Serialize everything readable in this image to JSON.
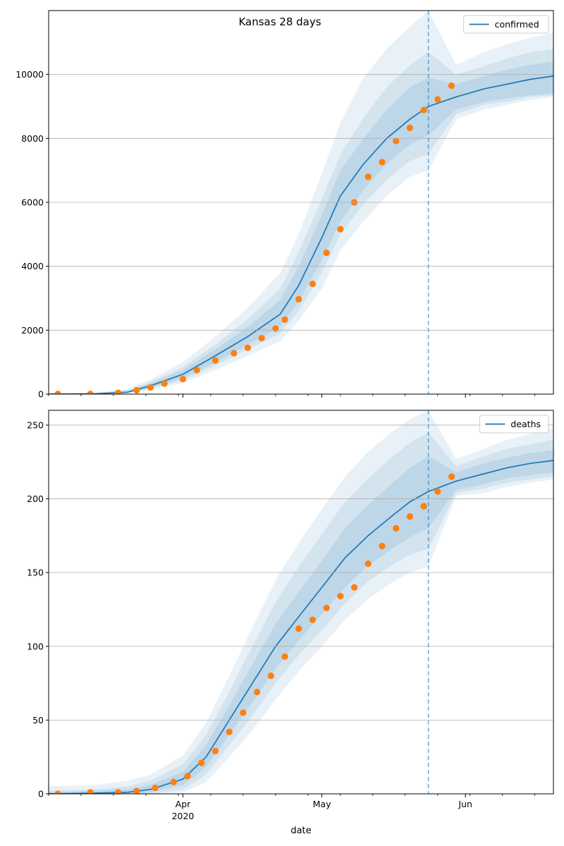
{
  "figure": {
    "title": "Kansas 28 days",
    "xlabel": "date"
  },
  "chart_data": [
    {
      "type": "line",
      "name": "confirmed-panel",
      "legend": {
        "entries": [
          "confirmed"
        ],
        "placement": "upper right"
      },
      "x_range": [
        "2020-03-03",
        "2020-06-20"
      ],
      "x_ticks": [
        {
          "date": "2020-04-01",
          "label": "Apr",
          "sublabel": "2020"
        },
        {
          "date": "2020-05-01",
          "label": "May",
          "sublabel": ""
        },
        {
          "date": "2020-06-01",
          "label": "Jun",
          "sublabel": ""
        }
      ],
      "ylim": [
        0,
        12000
      ],
      "y_ticks": [
        0,
        2000,
        4000,
        6000,
        8000,
        10000
      ],
      "grid": "horizontal",
      "forecast_start": "2020-05-24",
      "band_colors": "#1f77b4",
      "line_color": "#1f77b4",
      "marker_color": "#ff7f0e",
      "model": {
        "x": [
          "2020-03-03",
          "2020-03-13",
          "2020-03-20",
          "2020-03-25",
          "2020-04-01",
          "2020-04-08",
          "2020-04-15",
          "2020-04-22",
          "2020-04-26",
          "2020-05-01",
          "2020-05-05",
          "2020-05-10",
          "2020-05-15",
          "2020-05-20",
          "2020-05-24",
          "2020-05-30",
          "2020-06-05",
          "2020-06-10",
          "2020-06-15",
          "2020-06-20"
        ],
        "median": [
          0,
          10,
          60,
          260,
          620,
          1200,
          1800,
          2500,
          3400,
          4900,
          6200,
          7200,
          8000,
          8600,
          9000,
          9300,
          9550,
          9700,
          9850,
          9950
        ],
        "inner": [
          [
            0,
            0
          ],
          [
            5,
            20
          ],
          [
            40,
            90
          ],
          [
            200,
            330
          ],
          [
            500,
            750
          ],
          [
            1000,
            1400
          ],
          [
            1550,
            2100
          ],
          [
            2100,
            2950
          ],
          [
            2900,
            4000
          ],
          [
            4200,
            5600
          ],
          [
            5400,
            7000
          ],
          [
            6400,
            8000
          ],
          [
            7200,
            8900
          ],
          [
            7800,
            9600
          ],
          [
            8100,
            9900
          ],
          [
            8900,
            9700
          ],
          [
            9150,
            9950
          ],
          [
            9250,
            10150
          ],
          [
            9350,
            10300
          ],
          [
            9400,
            10400
          ]
        ],
        "middle": [
          [
            0,
            5
          ],
          [
            3,
            30
          ],
          [
            30,
            120
          ],
          [
            170,
            380
          ],
          [
            430,
            850
          ],
          [
            900,
            1550
          ],
          [
            1400,
            2350
          ],
          [
            1900,
            3300
          ],
          [
            2600,
            4450
          ],
          [
            3800,
            6100
          ],
          [
            5000,
            7500
          ],
          [
            5950,
            8650
          ],
          [
            6700,
            9600
          ],
          [
            7300,
            10300
          ],
          [
            7500,
            10700
          ],
          [
            8750,
            10000
          ],
          [
            9050,
            10250
          ],
          [
            9150,
            10500
          ],
          [
            9300,
            10700
          ],
          [
            9350,
            10800
          ]
        ],
        "outer": [
          [
            0,
            10
          ],
          [
            0,
            45
          ],
          [
            20,
            160
          ],
          [
            130,
            460
          ],
          [
            350,
            1000
          ],
          [
            750,
            1800
          ],
          [
            1200,
            2700
          ],
          [
            1650,
            3800
          ],
          [
            2300,
            5000
          ],
          [
            3300,
            6900
          ],
          [
            4500,
            8500
          ],
          [
            5400,
            9900
          ],
          [
            6200,
            10800
          ],
          [
            6800,
            11500
          ],
          [
            7000,
            12000
          ],
          [
            8600,
            10300
          ],
          [
            8900,
            10700
          ],
          [
            9050,
            10950
          ],
          [
            9200,
            11150
          ],
          [
            9300,
            11300
          ]
        ]
      },
      "observed": {
        "x": [
          "2020-03-05",
          "2020-03-12",
          "2020-03-18",
          "2020-03-22",
          "2020-03-25",
          "2020-03-28",
          "2020-04-01",
          "2020-04-04",
          "2020-04-08",
          "2020-04-12",
          "2020-04-15",
          "2020-04-18",
          "2020-04-21",
          "2020-04-23",
          "2020-04-26",
          "2020-04-29",
          "2020-05-02",
          "2020-05-05",
          "2020-05-08",
          "2020-05-11",
          "2020-05-14",
          "2020-05-17",
          "2020-05-20",
          "2020-05-23",
          "2020-05-26",
          "2020-05-29"
        ],
        "y": [
          5,
          5,
          40,
          120,
          210,
          330,
          470,
          750,
          1050,
          1280,
          1450,
          1750,
          2050,
          2330,
          2970,
          3450,
          4420,
          5160,
          6000,
          6800,
          7260,
          7920,
          8330,
          8890,
          9220,
          9650
        ]
      }
    },
    {
      "type": "line",
      "name": "deaths-panel",
      "legend": {
        "entries": [
          "deaths"
        ],
        "placement": "upper right"
      },
      "x_range": [
        "2020-03-03",
        "2020-06-20"
      ],
      "x_ticks": [
        {
          "date": "2020-04-01",
          "label": "Apr",
          "sublabel": "2020"
        },
        {
          "date": "2020-05-01",
          "label": "May",
          "sublabel": ""
        },
        {
          "date": "2020-06-01",
          "label": "Jun",
          "sublabel": ""
        }
      ],
      "ylim": [
        0,
        260
      ],
      "y_ticks": [
        0,
        50,
        100,
        150,
        200,
        250
      ],
      "grid": "horizontal",
      "forecast_start": "2020-05-24",
      "band_colors": "#1f77b4",
      "line_color": "#1f77b4",
      "marker_color": "#ff7f0e",
      "model": {
        "x": [
          "2020-03-03",
          "2020-03-13",
          "2020-03-20",
          "2020-03-25",
          "2020-04-01",
          "2020-04-06",
          "2020-04-11",
          "2020-04-16",
          "2020-04-21",
          "2020-04-26",
          "2020-05-01",
          "2020-05-06",
          "2020-05-11",
          "2020-05-16",
          "2020-05-20",
          "2020-05-24",
          "2020-05-30",
          "2020-06-05",
          "2020-06-10",
          "2020-06-15",
          "2020-06-20"
        ],
        "median": [
          0,
          0.5,
          1,
          3,
          10,
          25,
          50,
          75,
          100,
          120,
          140,
          160,
          175,
          188,
          198,
          205,
          212,
          217,
          221,
          224,
          226
        ],
        "inner": [
          [
            0,
            1
          ],
          [
            0,
            2
          ],
          [
            0,
            3
          ],
          [
            1,
            6
          ],
          [
            6,
            15
          ],
          [
            18,
            33
          ],
          [
            40,
            60
          ],
          [
            62,
            88
          ],
          [
            85,
            115
          ],
          [
            104,
            137
          ],
          [
            122,
            158
          ],
          [
            140,
            180
          ],
          [
            155,
            196
          ],
          [
            166,
            210
          ],
          [
            174,
            221
          ],
          [
            180,
            229
          ],
          [
            206,
            218
          ],
          [
            210,
            224
          ],
          [
            214,
            228
          ],
          [
            216,
            231
          ],
          [
            218,
            233
          ]
        ],
        "middle": [
          [
            0,
            2
          ],
          [
            0,
            3
          ],
          [
            0,
            5
          ],
          [
            0,
            9
          ],
          [
            3,
            20
          ],
          [
            13,
            40
          ],
          [
            33,
            69
          ],
          [
            53,
            100
          ],
          [
            75,
            130
          ],
          [
            94,
            154
          ],
          [
            111,
            176
          ],
          [
            129,
            198
          ],
          [
            144,
            214
          ],
          [
            155,
            228
          ],
          [
            162,
            238
          ],
          [
            166,
            245
          ],
          [
            204,
            222
          ],
          [
            207,
            229
          ],
          [
            211,
            234
          ],
          [
            213,
            237
          ],
          [
            215,
            240
          ]
        ],
        "outer": [
          [
            0,
            5
          ],
          [
            0,
            6
          ],
          [
            0,
            9
          ],
          [
            0,
            13
          ],
          [
            1,
            26
          ],
          [
            8,
            48
          ],
          [
            25,
            80
          ],
          [
            43,
            113
          ],
          [
            64,
            145
          ],
          [
            83,
            170
          ],
          [
            100,
            193
          ],
          [
            118,
            215
          ],
          [
            132,
            232
          ],
          [
            143,
            245
          ],
          [
            150,
            254
          ],
          [
            154,
            260
          ],
          [
            202,
            227
          ],
          [
            204,
            234
          ],
          [
            208,
            240
          ],
          [
            211,
            244
          ],
          [
            213,
            248
          ]
        ]
      },
      "observed": {
        "x": [
          "2020-03-05",
          "2020-03-12",
          "2020-03-18",
          "2020-03-22",
          "2020-03-26",
          "2020-03-30",
          "2020-04-02",
          "2020-04-05",
          "2020-04-08",
          "2020-04-11",
          "2020-04-14",
          "2020-04-17",
          "2020-04-20",
          "2020-04-23",
          "2020-04-26",
          "2020-04-29",
          "2020-05-02",
          "2020-05-05",
          "2020-05-08",
          "2020-05-11",
          "2020-05-14",
          "2020-05-17",
          "2020-05-20",
          "2020-05-23",
          "2020-05-26",
          "2020-05-29"
        ],
        "y": [
          0,
          1,
          1,
          2,
          4,
          8,
          12,
          21,
          29,
          42,
          55,
          69,
          80,
          93,
          112,
          118,
          126,
          134,
          140,
          156,
          168,
          180,
          188,
          195,
          205,
          215
        ]
      }
    }
  ]
}
